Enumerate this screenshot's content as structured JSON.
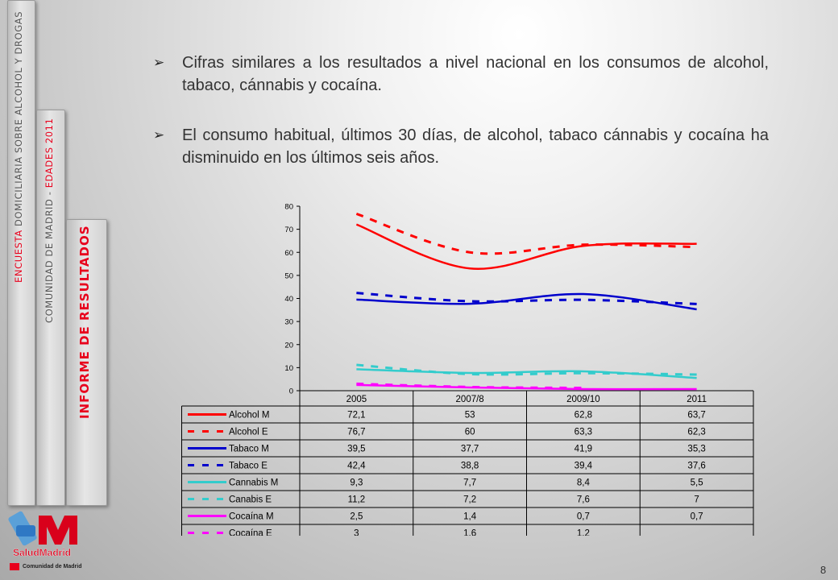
{
  "sidebar": {
    "tab1": {
      "red": "ENCUESTA",
      "gray": "DOMICILIARIA SOBRE ALCOHOL Y DROGAS"
    },
    "tab2": {
      "gray": "COMUNIDAD DE MADRID -",
      "red": "EDADES 2011"
    },
    "tab3": {
      "label": "INFORME DE RESULTADOS"
    }
  },
  "bullets": [
    "Cifras similares a los resultados a nivel nacional en los consumos de alcohol, tabaco, cánnabis y cocaína.",
    "El consumo habitual, últimos 30 días, de alcohol, tabaco cánnabis y cocaína ha disminuido en los últimos seis años."
  ],
  "logo": {
    "brand": "SaludMadrid",
    "sub": "Comunidad de Madrid"
  },
  "page_number": "8",
  "chart_data": {
    "type": "line",
    "categories": [
      "2005",
      "2007/8",
      "2009/10",
      "2011"
    ],
    "ylim": [
      0,
      80
    ],
    "yticks": [
      "0",
      "10",
      "20",
      "30",
      "40",
      "50",
      "60",
      "70",
      "80"
    ],
    "series": [
      {
        "name": "Alcohol M",
        "values": [
          72.1,
          53,
          62.8,
          63.7
        ],
        "labels": [
          "72,1",
          "53",
          "62,8",
          "63,7"
        ],
        "color": "#ff0000",
        "dash": false
      },
      {
        "name": "Alcohol E",
        "values": [
          76.7,
          60,
          63.3,
          62.3
        ],
        "labels": [
          "76,7",
          "60",
          "63,3",
          "62,3"
        ],
        "color": "#ff0000",
        "dash": true
      },
      {
        "name": "Tabaco M",
        "values": [
          39.5,
          37.7,
          41.9,
          35.3
        ],
        "labels": [
          "39,5",
          "37,7",
          "41,9",
          "35,3"
        ],
        "color": "#0000cc",
        "dash": false
      },
      {
        "name": "Tabaco E",
        "values": [
          42.4,
          38.8,
          39.4,
          37.6
        ],
        "labels": [
          "42,4",
          "38,8",
          "39,4",
          "37,6"
        ],
        "color": "#0000cc",
        "dash": true
      },
      {
        "name": "Cannabis  M",
        "values": [
          9.3,
          7.7,
          8.4,
          5.5
        ],
        "labels": [
          "9,3",
          "7,7",
          "8,4",
          "5,5"
        ],
        "color": "#33cccc",
        "dash": false
      },
      {
        "name": "Canabis E",
        "values": [
          11.2,
          7.2,
          7.6,
          7
        ],
        "labels": [
          "11,2",
          "7,2",
          "7,6",
          "7"
        ],
        "color": "#33cccc",
        "dash": true
      },
      {
        "name": "Cocaína M",
        "values": [
          2.5,
          1.4,
          0.7,
          0.7
        ],
        "labels": [
          "2,5",
          "1,4",
          "0,7",
          "0,7"
        ],
        "color": "#ff00ff",
        "dash": false
      },
      {
        "name": "Cocaína E",
        "values": [
          3,
          1.6,
          1.2,
          null
        ],
        "labels": [
          "3",
          "1,6",
          "1,2",
          ""
        ],
        "color": "#ff00ff",
        "dash": true
      }
    ]
  }
}
